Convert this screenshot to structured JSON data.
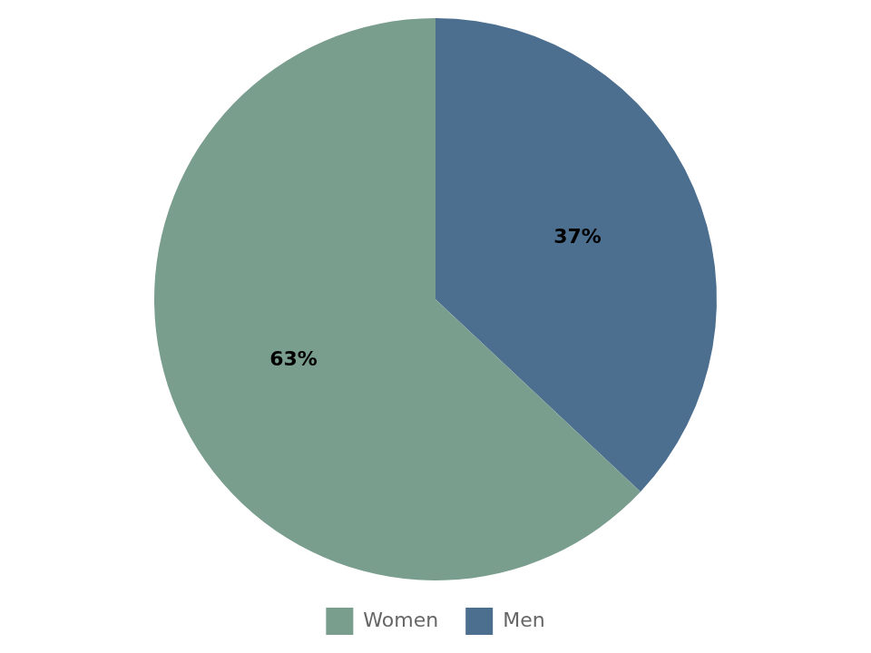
{
  "chart_data": {
    "type": "pie",
    "categories": [
      "Men",
      "Women"
    ],
    "values": [
      37,
      63
    ],
    "value_labels": [
      "37%",
      "63%"
    ],
    "colors": [
      "#4D6F8F",
      "#7A9E8E"
    ],
    "data_labels": true,
    "legend": "bottom"
  }
}
